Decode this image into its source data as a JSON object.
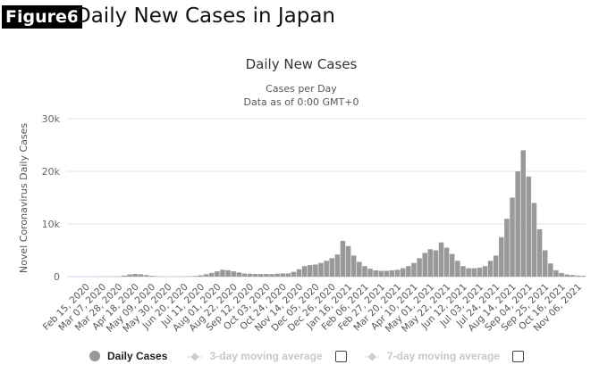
{
  "figure_label": "Figure6",
  "figure_title": "Daily New Cases in Japan",
  "chart_data": {
    "type": "bar",
    "title": "Daily New Cases",
    "subtitle": [
      "Cases per Day",
      "Data as of 0:00 GMT+0"
    ],
    "ylabel": "Novel Coronavirus Daily Cases",
    "xlabel": "",
    "ylim": [
      0,
      30000
    ],
    "yticks": [
      0,
      10000,
      20000,
      30000
    ],
    "ytick_labels": [
      "0",
      "10k",
      "20k",
      "30k"
    ],
    "grid": true,
    "bar_color": "#999999",
    "xlim": [
      "2020-01-20",
      "2021-11-14"
    ],
    "xtick_labels": [
      "Feb 15, 2020",
      "Mar 07, 2020",
      "Mar 28, 2020",
      "Apr 18, 2020",
      "May 09, 2020",
      "May 30, 2020",
      "Jun 20, 2020",
      "Jul 11, 2020",
      "Aug 01, 2020",
      "Aug 22, 2020",
      "Sep 12, 2020",
      "Oct 03, 2020",
      "Oct 24, 2020",
      "Nov 14, 2020",
      "Dec 05, 2020",
      "Dec 26, 2020",
      "Jan 16, 2021",
      "Feb 06, 2021",
      "Feb 27, 2021",
      "Mar 20, 2021",
      "Apr 10, 2021",
      "May 01, 2021",
      "May 22, 2021",
      "Jun 12, 2021",
      "Jul 03, 2021",
      "Jul 24, 2021",
      "Aug 14, 2021",
      "Sep 04, 2021",
      "Sep 25, 2021",
      "Oct 16, 2021",
      "Nov 06, 2021"
    ],
    "x": [
      "2020-01-20",
      "2020-01-27",
      "2020-02-03",
      "2020-02-10",
      "2020-02-17",
      "2020-02-24",
      "2020-03-02",
      "2020-03-09",
      "2020-03-16",
      "2020-03-23",
      "2020-03-30",
      "2020-04-06",
      "2020-04-13",
      "2020-04-20",
      "2020-04-27",
      "2020-05-04",
      "2020-05-11",
      "2020-05-18",
      "2020-05-25",
      "2020-06-01",
      "2020-06-08",
      "2020-06-15",
      "2020-06-22",
      "2020-06-29",
      "2020-07-06",
      "2020-07-13",
      "2020-07-20",
      "2020-07-27",
      "2020-08-03",
      "2020-08-10",
      "2020-08-17",
      "2020-08-24",
      "2020-08-31",
      "2020-09-07",
      "2020-09-14",
      "2020-09-21",
      "2020-09-28",
      "2020-10-05",
      "2020-10-12",
      "2020-10-19",
      "2020-10-26",
      "2020-11-02",
      "2020-11-09",
      "2020-11-16",
      "2020-11-23",
      "2020-11-30",
      "2020-12-07",
      "2020-12-14",
      "2020-12-21",
      "2020-12-28",
      "2021-01-04",
      "2021-01-11",
      "2021-01-18",
      "2021-01-25",
      "2021-02-01",
      "2021-02-08",
      "2021-02-15",
      "2021-02-22",
      "2021-03-01",
      "2021-03-08",
      "2021-03-15",
      "2021-03-22",
      "2021-03-29",
      "2021-04-05",
      "2021-04-12",
      "2021-04-19",
      "2021-04-26",
      "2021-05-03",
      "2021-05-10",
      "2021-05-17",
      "2021-05-24",
      "2021-05-31",
      "2021-06-07",
      "2021-06-14",
      "2021-06-21",
      "2021-06-28",
      "2021-07-05",
      "2021-07-12",
      "2021-07-19",
      "2021-07-26",
      "2021-08-02",
      "2021-08-09",
      "2021-08-16",
      "2021-08-23",
      "2021-08-30",
      "2021-09-06",
      "2021-09-13",
      "2021-09-20",
      "2021-09-27",
      "2021-10-04",
      "2021-10-11",
      "2021-10-18",
      "2021-10-25",
      "2021-11-01",
      "2021-11-08"
    ],
    "values": [
      1,
      2,
      3,
      5,
      10,
      20,
      30,
      40,
      40,
      70,
      200,
      400,
      500,
      450,
      300,
      150,
      80,
      30,
      20,
      30,
      40,
      50,
      80,
      130,
      250,
      450,
      700,
      1000,
      1300,
      1200,
      1000,
      800,
      600,
      550,
      500,
      480,
      500,
      480,
      550,
      600,
      600,
      900,
      1400,
      2000,
      2200,
      2300,
      2600,
      3000,
      3500,
      4200,
      6800,
      5800,
      4000,
      2800,
      2000,
      1500,
      1200,
      1100,
      1100,
      1200,
      1300,
      1600,
      2000,
      2600,
      3500,
      4500,
      5200,
      5000,
      6500,
      5500,
      4300,
      3000,
      2000,
      1600,
      1600,
      1700,
      2000,
      3000,
      4000,
      7500,
      11000,
      15000,
      20000,
      24000,
      19000,
      14000,
      9000,
      5000,
      2500,
      1200,
      700,
      400,
      300,
      200,
      150
    ],
    "legend": {
      "position": "bottom",
      "items": [
        {
          "label": "Daily Cases",
          "active": true
        },
        {
          "label": "3-day moving average",
          "active": false
        },
        {
          "label": "7-day moving average",
          "active": false
        }
      ]
    }
  }
}
